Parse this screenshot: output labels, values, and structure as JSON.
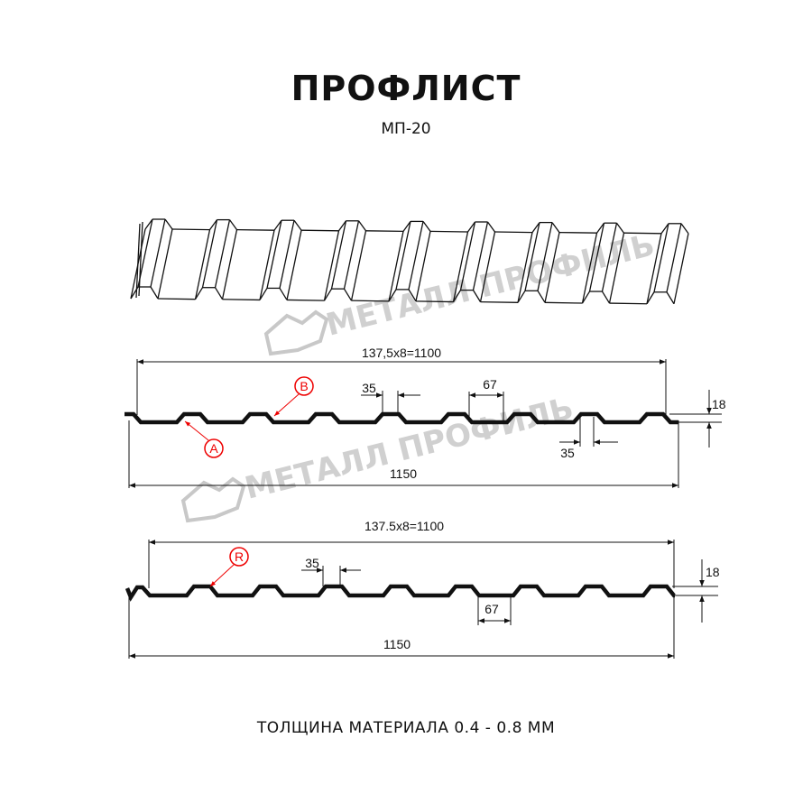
{
  "header": {
    "title": "ПРОФЛИСТ",
    "subtitle": "МП-20"
  },
  "watermark": {
    "text": "МЕТАЛЛ ПРОФИЛЬ",
    "color": "#c8c8c8"
  },
  "profile_a": {
    "pitch_label": "137,5x8=1100",
    "total_label": "1150",
    "rib_top_label": "35",
    "trough_label": "67",
    "rib_bottom_label": "35",
    "height_label": "18",
    "callout_top": "B",
    "callout_bottom": "A"
  },
  "profile_r": {
    "pitch_label": "137.5x8=1100",
    "total_label": "1150",
    "rib_top_label": "35",
    "trough_label": "67",
    "height_label": "18",
    "callout": "R"
  },
  "footer": {
    "thickness": "ТОЛЩИНА МАТЕРИАЛА 0.4 - 0.8 ММ"
  },
  "colors": {
    "line": "#111111",
    "callout": "#e00000"
  }
}
